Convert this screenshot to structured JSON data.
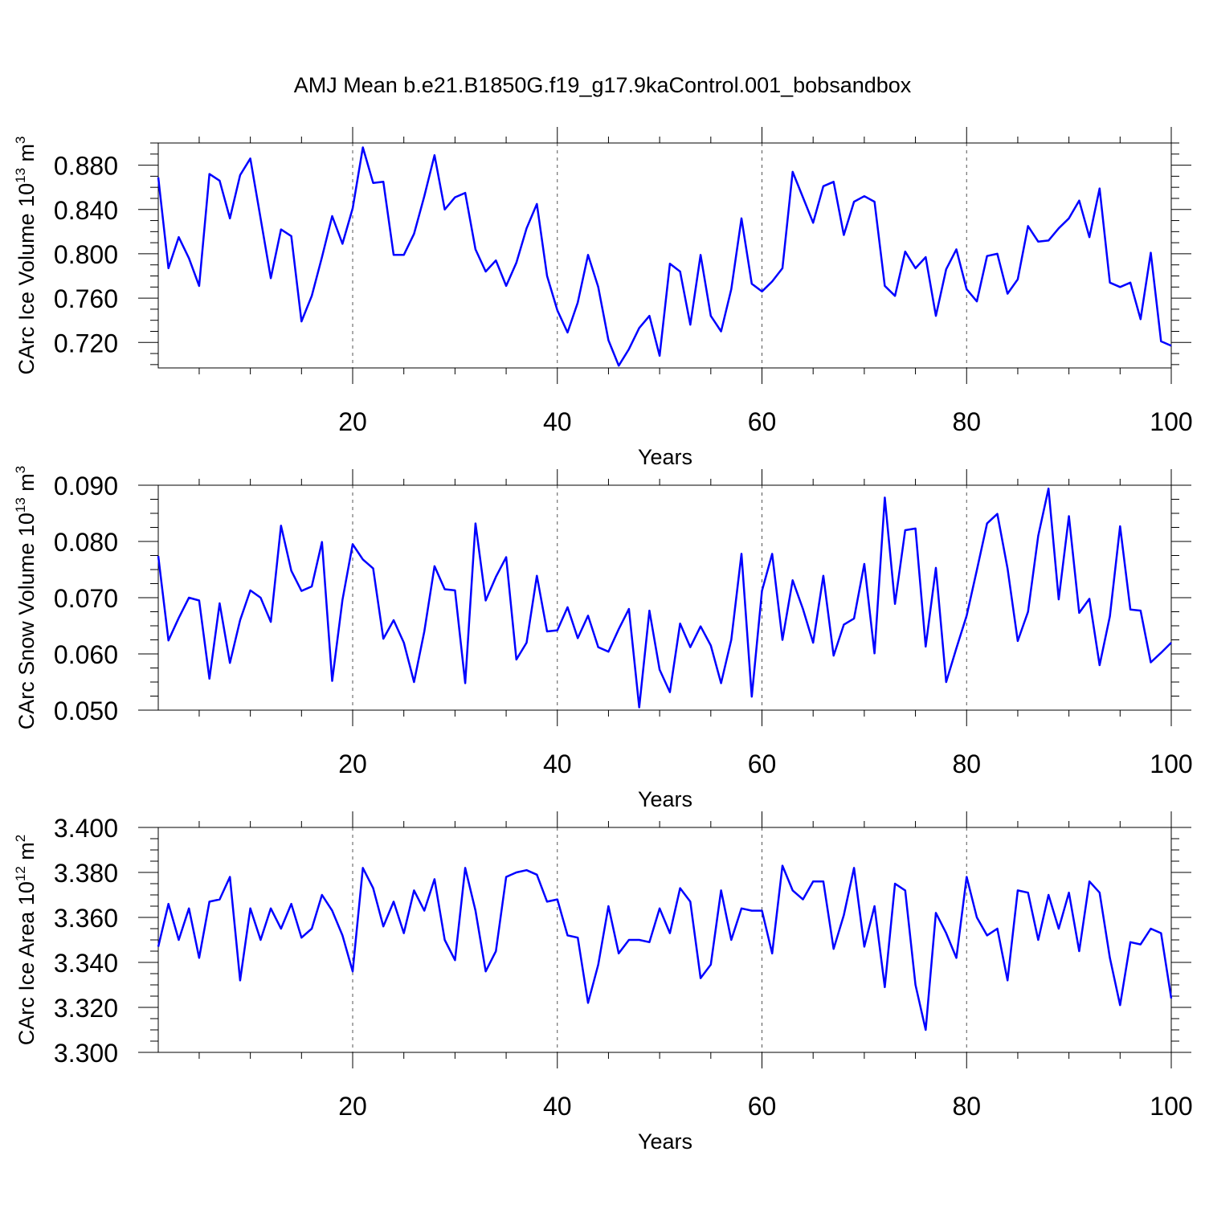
{
  "title": "AMJ Mean b.e21.B1850G.f19_g17.9kaControl.001_bobsandbox",
  "line_color": "#0000ff",
  "chart_data": [
    {
      "type": "line",
      "ylabel": "CArc Ice Volume 10",
      "ylabel_sup": "13",
      "ylabel_unit": " m",
      "ylabel_unit_sup": "3",
      "xlabel": "Years",
      "xlim": [
        1,
        100
      ],
      "ylim": [
        0.697,
        0.9
      ],
      "yticks": [
        0.72,
        0.76,
        0.8,
        0.84,
        0.88
      ],
      "ytick_labels": [
        "0.720",
        "0.760",
        "0.800",
        "0.840",
        "0.880"
      ],
      "xticks": [
        20,
        40,
        60,
        80,
        100
      ],
      "xtick_labels": [
        "20",
        "40",
        "60",
        "80",
        "100"
      ],
      "grid_x": [
        20,
        40,
        60,
        80
      ],
      "x": [
        1,
        2,
        3,
        4,
        5,
        6,
        7,
        8,
        9,
        10,
        11,
        12,
        13,
        14,
        15,
        16,
        17,
        18,
        19,
        20,
        21,
        22,
        23,
        24,
        25,
        26,
        27,
        28,
        29,
        30,
        31,
        32,
        33,
        34,
        35,
        36,
        37,
        38,
        39,
        40,
        41,
        42,
        43,
        44,
        45,
        46,
        47,
        48,
        49,
        50,
        51,
        52,
        53,
        54,
        55,
        56,
        57,
        58,
        59,
        60,
        61,
        62,
        63,
        64,
        65,
        66,
        67,
        68,
        69,
        70,
        71,
        72,
        73,
        74,
        75,
        76,
        77,
        78,
        79,
        80,
        81,
        82,
        83,
        84,
        85,
        86,
        87,
        88,
        89,
        90,
        91,
        92,
        93,
        94,
        95,
        96,
        97,
        98,
        99,
        100
      ],
      "values": [
        0.869,
        0.787,
        0.815,
        0.796,
        0.771,
        0.872,
        0.866,
        0.832,
        0.871,
        0.886,
        0.832,
        0.778,
        0.822,
        0.816,
        0.739,
        0.762,
        0.797,
        0.834,
        0.809,
        0.841,
        0.896,
        0.864,
        0.865,
        0.799,
        0.799,
        0.818,
        0.852,
        0.889,
        0.84,
        0.851,
        0.855,
        0.804,
        0.784,
        0.794,
        0.771,
        0.792,
        0.823,
        0.845,
        0.78,
        0.749,
        0.729,
        0.756,
        0.799,
        0.77,
        0.722,
        0.699,
        0.714,
        0.733,
        0.744,
        0.708,
        0.791,
        0.784,
        0.736,
        0.799,
        0.744,
        0.73,
        0.768,
        0.832,
        0.773,
        0.766,
        0.775,
        0.787,
        0.874,
        0.851,
        0.828,
        0.861,
        0.865,
        0.817,
        0.847,
        0.852,
        0.847,
        0.771,
        0.762,
        0.802,
        0.787,
        0.797,
        0.744,
        0.786,
        0.804,
        0.768,
        0.757,
        0.798,
        0.8,
        0.764,
        0.777,
        0.825,
        0.811,
        0.812,
        0.823,
        0.832,
        0.848,
        0.815,
        0.859,
        0.774,
        0.77,
        0.774,
        0.741,
        0.801,
        0.721,
        0.717
      ]
    },
    {
      "type": "line",
      "ylabel": "CArc Snow Volume 10",
      "ylabel_sup": "13",
      "ylabel_unit": " m",
      "ylabel_unit_sup": "3",
      "xlabel": "Years",
      "xlim": [
        1,
        100
      ],
      "ylim": [
        0.05,
        0.09
      ],
      "yticks": [
        0.05,
        0.06,
        0.07,
        0.08,
        0.09
      ],
      "ytick_labels": [
        "0.050",
        "0.060",
        "0.070",
        "0.080",
        "0.090"
      ],
      "xticks": [
        20,
        40,
        60,
        80,
        100
      ],
      "xtick_labels": [
        "20",
        "40",
        "60",
        "80",
        "100"
      ],
      "grid_x": [
        20,
        40,
        60,
        80
      ],
      "x": [
        1,
        2,
        3,
        4,
        5,
        6,
        7,
        8,
        9,
        10,
        11,
        12,
        13,
        14,
        15,
        16,
        17,
        18,
        19,
        20,
        21,
        22,
        23,
        24,
        25,
        26,
        27,
        28,
        29,
        30,
        31,
        32,
        33,
        34,
        35,
        36,
        37,
        38,
        39,
        40,
        41,
        42,
        43,
        44,
        45,
        46,
        47,
        48,
        49,
        50,
        51,
        52,
        53,
        54,
        55,
        56,
        57,
        58,
        59,
        60,
        61,
        62,
        63,
        64,
        65,
        66,
        67,
        68,
        69,
        70,
        71,
        72,
        73,
        74,
        75,
        76,
        77,
        78,
        79,
        80,
        81,
        82,
        83,
        84,
        85,
        86,
        87,
        88,
        89,
        90,
        91,
        92,
        93,
        94,
        95,
        96,
        97,
        98,
        99,
        100
      ],
      "values": [
        0.0774,
        0.0624,
        0.0664,
        0.07,
        0.0695,
        0.0556,
        0.069,
        0.0584,
        0.066,
        0.0713,
        0.07,
        0.0657,
        0.0828,
        0.0748,
        0.0712,
        0.072,
        0.0799,
        0.0552,
        0.0696,
        0.0795,
        0.0768,
        0.0752,
        0.0627,
        0.066,
        0.062,
        0.055,
        0.064,
        0.0756,
        0.0715,
        0.0713,
        0.0548,
        0.0832,
        0.0695,
        0.0737,
        0.0772,
        0.059,
        0.062,
        0.0739,
        0.064,
        0.0642,
        0.0683,
        0.0628,
        0.0668,
        0.0612,
        0.0604,
        0.0644,
        0.068,
        0.0505,
        0.0677,
        0.0572,
        0.0532,
        0.0654,
        0.0612,
        0.0649,
        0.0615,
        0.0548,
        0.0625,
        0.0778,
        0.0524,
        0.0712,
        0.0778,
        0.0625,
        0.0731,
        0.068,
        0.062,
        0.0739,
        0.0597,
        0.0652,
        0.0663,
        0.076,
        0.0601,
        0.0878,
        0.0689,
        0.082,
        0.0823,
        0.0613,
        0.0753,
        0.055,
        0.061,
        0.0668,
        0.0749,
        0.0832,
        0.0849,
        0.0752,
        0.0623,
        0.0675,
        0.081,
        0.0894,
        0.0697,
        0.0845,
        0.0673,
        0.0698,
        0.058,
        0.0667,
        0.0827,
        0.0679,
        0.0677,
        0.0585,
        0.0602,
        0.062
      ]
    },
    {
      "type": "line",
      "ylabel": "CArc Ice Area 10",
      "ylabel_sup": "12",
      "ylabel_unit": " m",
      "ylabel_unit_sup": "2",
      "xlabel": "Years",
      "xlim": [
        1,
        100
      ],
      "ylim": [
        3.3,
        3.4
      ],
      "yticks": [
        3.3,
        3.32,
        3.34,
        3.36,
        3.38,
        3.4
      ],
      "ytick_labels": [
        "3.300",
        "3.320",
        "3.340",
        "3.360",
        "3.380",
        "3.400"
      ],
      "xticks": [
        20,
        40,
        60,
        80,
        100
      ],
      "xtick_labels": [
        "20",
        "40",
        "60",
        "80",
        "100"
      ],
      "grid_x": [
        20,
        40,
        60,
        80
      ],
      "x": [
        1,
        2,
        3,
        4,
        5,
        6,
        7,
        8,
        9,
        10,
        11,
        12,
        13,
        14,
        15,
        16,
        17,
        18,
        19,
        20,
        21,
        22,
        23,
        24,
        25,
        26,
        27,
        28,
        29,
        30,
        31,
        32,
        33,
        34,
        35,
        36,
        37,
        38,
        39,
        40,
        41,
        42,
        43,
        44,
        45,
        46,
        47,
        48,
        49,
        50,
        51,
        52,
        53,
        54,
        55,
        56,
        57,
        58,
        59,
        60,
        61,
        62,
        63,
        64,
        65,
        66,
        67,
        68,
        69,
        70,
        71,
        72,
        73,
        74,
        75,
        76,
        77,
        78,
        79,
        80,
        81,
        82,
        83,
        84,
        85,
        86,
        87,
        88,
        89,
        90,
        91,
        92,
        93,
        94,
        95,
        96,
        97,
        98,
        99,
        100
      ],
      "values": [
        3.347,
        3.366,
        3.35,
        3.364,
        3.342,
        3.367,
        3.368,
        3.378,
        3.332,
        3.364,
        3.35,
        3.364,
        3.355,
        3.366,
        3.351,
        3.355,
        3.37,
        3.363,
        3.352,
        3.336,
        3.382,
        3.373,
        3.356,
        3.367,
        3.353,
        3.372,
        3.363,
        3.377,
        3.35,
        3.341,
        3.382,
        3.363,
        3.336,
        3.345,
        3.378,
        3.38,
        3.381,
        3.379,
        3.367,
        3.368,
        3.352,
        3.351,
        3.322,
        3.339,
        3.365,
        3.344,
        3.35,
        3.35,
        3.349,
        3.364,
        3.353,
        3.373,
        3.367,
        3.333,
        3.339,
        3.372,
        3.35,
        3.364,
        3.363,
        3.363,
        3.344,
        3.383,
        3.372,
        3.368,
        3.376,
        3.376,
        3.346,
        3.361,
        3.382,
        3.347,
        3.365,
        3.329,
        3.375,
        3.372,
        3.33,
        3.31,
        3.362,
        3.353,
        3.342,
        3.378,
        3.36,
        3.352,
        3.355,
        3.332,
        3.372,
        3.371,
        3.35,
        3.37,
        3.355,
        3.371,
        3.345,
        3.376,
        3.371,
        3.342,
        3.321,
        3.349,
        3.348,
        3.355,
        3.353,
        3.324
      ]
    }
  ]
}
